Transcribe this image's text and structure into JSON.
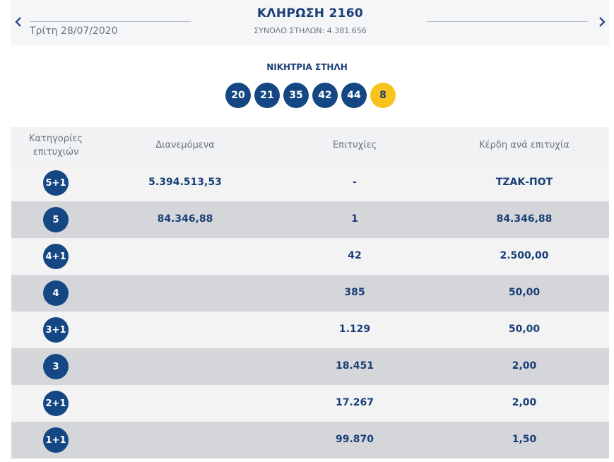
{
  "header": {
    "prev_label": "<",
    "next_label": ">",
    "date": "Τρίτη 28/07/2020",
    "title": "ΚΛΗΡΩΣΗ 2160",
    "columns_total": "ΣΥΝΟΛΟ ΣΤΗΛΩΝ: 4.381.656"
  },
  "winning": {
    "label": "ΝΙΚΗΤΡΙΑ ΣΤΗΛΗ",
    "numbers": [
      "20",
      "21",
      "35",
      "42",
      "44"
    ],
    "bonus": "8"
  },
  "table": {
    "headers": {
      "category_line1": "Κατηγορίες",
      "category_line2": "επιτυχιών",
      "distributed": "Διανεμόμενα",
      "wins": "Επιτυχίες",
      "prize": "Κέρδη ανά επιτυχία"
    },
    "rows": [
      {
        "category": "5+1",
        "distributed": "5.394.513,53",
        "wins": "-",
        "prize": "ΤΖΑΚ-ΠΟΤ"
      },
      {
        "category": "5",
        "distributed": "84.346,88",
        "wins": "1",
        "prize": "84.346,88"
      },
      {
        "category": "4+1",
        "distributed": "",
        "wins": "42",
        "prize": "2.500,00"
      },
      {
        "category": "4",
        "distributed": "",
        "wins": "385",
        "prize": "50,00"
      },
      {
        "category": "3+1",
        "distributed": "",
        "wins": "1.129",
        "prize": "50,00"
      },
      {
        "category": "3",
        "distributed": "",
        "wins": "18.451",
        "prize": "2,00"
      },
      {
        "category": "2+1",
        "distributed": "",
        "wins": "17.267",
        "prize": "2,00"
      },
      {
        "category": "1+1",
        "distributed": "",
        "wins": "99.870",
        "prize": "1,50"
      }
    ]
  },
  "colors": {
    "primary": "#144784",
    "bonus": "#f7c31c",
    "row_light": "#f3f3f3",
    "row_dark": "#d5d6d9"
  }
}
